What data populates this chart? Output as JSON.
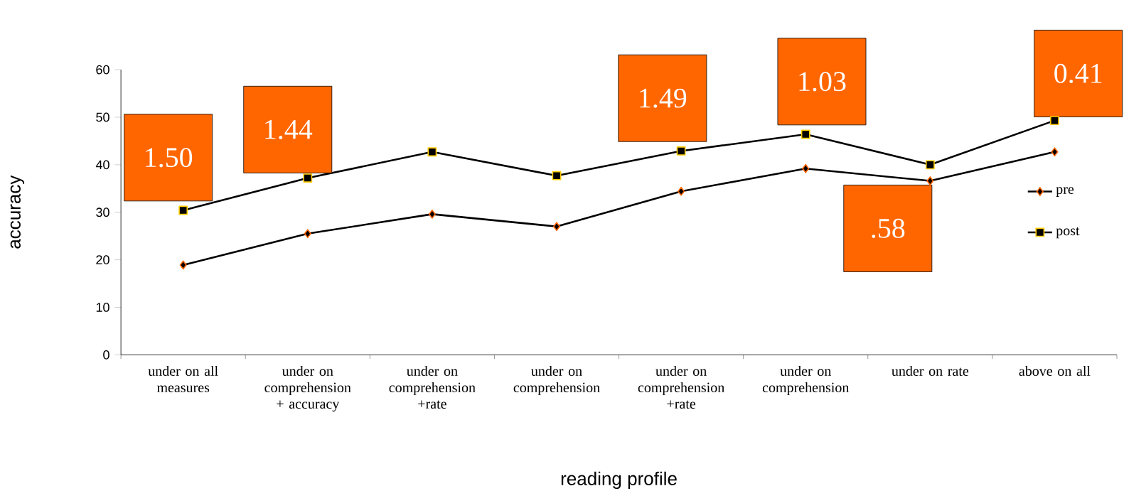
{
  "chart_data": {
    "type": "line",
    "xlabel": "reading profile",
    "ylabel": "accuracy",
    "categories": [
      "under on all measures",
      "under on comprehension + accuracy",
      "under on comprehension +rate",
      "under on comprehension",
      "under on comprehension +rate",
      "under on comprehension",
      "under on rate",
      "above on all"
    ],
    "series": [
      {
        "name": "pre",
        "color": "#000000",
        "marker": "diamond",
        "values": [
          18.9,
          25.5,
          29.6,
          27.0,
          34.4,
          39.2,
          36.6,
          42.7
        ]
      },
      {
        "name": "post",
        "color": "#000000",
        "marker": "square",
        "values": [
          30.4,
          37.2,
          42.7,
          37.7,
          42.9,
          46.4,
          40.0,
          49.3
        ]
      }
    ],
    "ylim": [
      0,
      60
    ],
    "yticks": [
      0,
      10,
      20,
      30,
      40,
      50,
      60
    ],
    "annotations": [
      "1.50",
      "1.44",
      "1.49",
      "1.03",
      ".58",
      "0.41"
    ],
    "legend": "right",
    "grid": false,
    "line_style": "solid"
  }
}
